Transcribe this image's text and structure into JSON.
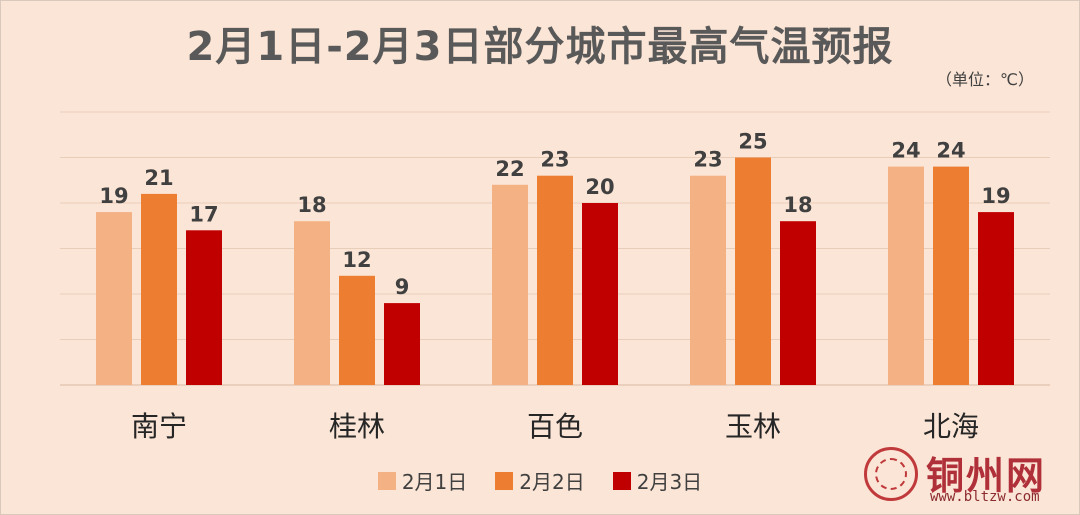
{
  "chart_data": {
    "type": "bar",
    "title": "2月1日-2月3日部分城市最高气温预报",
    "unit": "（单位：℃）",
    "categories": [
      "南宁",
      "桂林",
      "百色",
      "玉林",
      "北海"
    ],
    "series": [
      {
        "name": "2月1日",
        "color": "#f4b183",
        "values": [
          19,
          18,
          22,
          23,
          24
        ]
      },
      {
        "name": "2月2日",
        "color": "#ed7d31",
        "values": [
          21,
          12,
          23,
          25,
          24
        ]
      },
      {
        "name": "2月3日",
        "color": "#c00000",
        "values": [
          17,
          9,
          20,
          18,
          19
        ]
      }
    ],
    "ylim": [
      0,
      30
    ],
    "y_gridlines": [
      5,
      10,
      15,
      20,
      25,
      30
    ],
    "grid": true,
    "legend": "bottom",
    "data_labels": true
  },
  "watermark": {
    "name": "铜州网",
    "url": "www.bltzw.com"
  }
}
